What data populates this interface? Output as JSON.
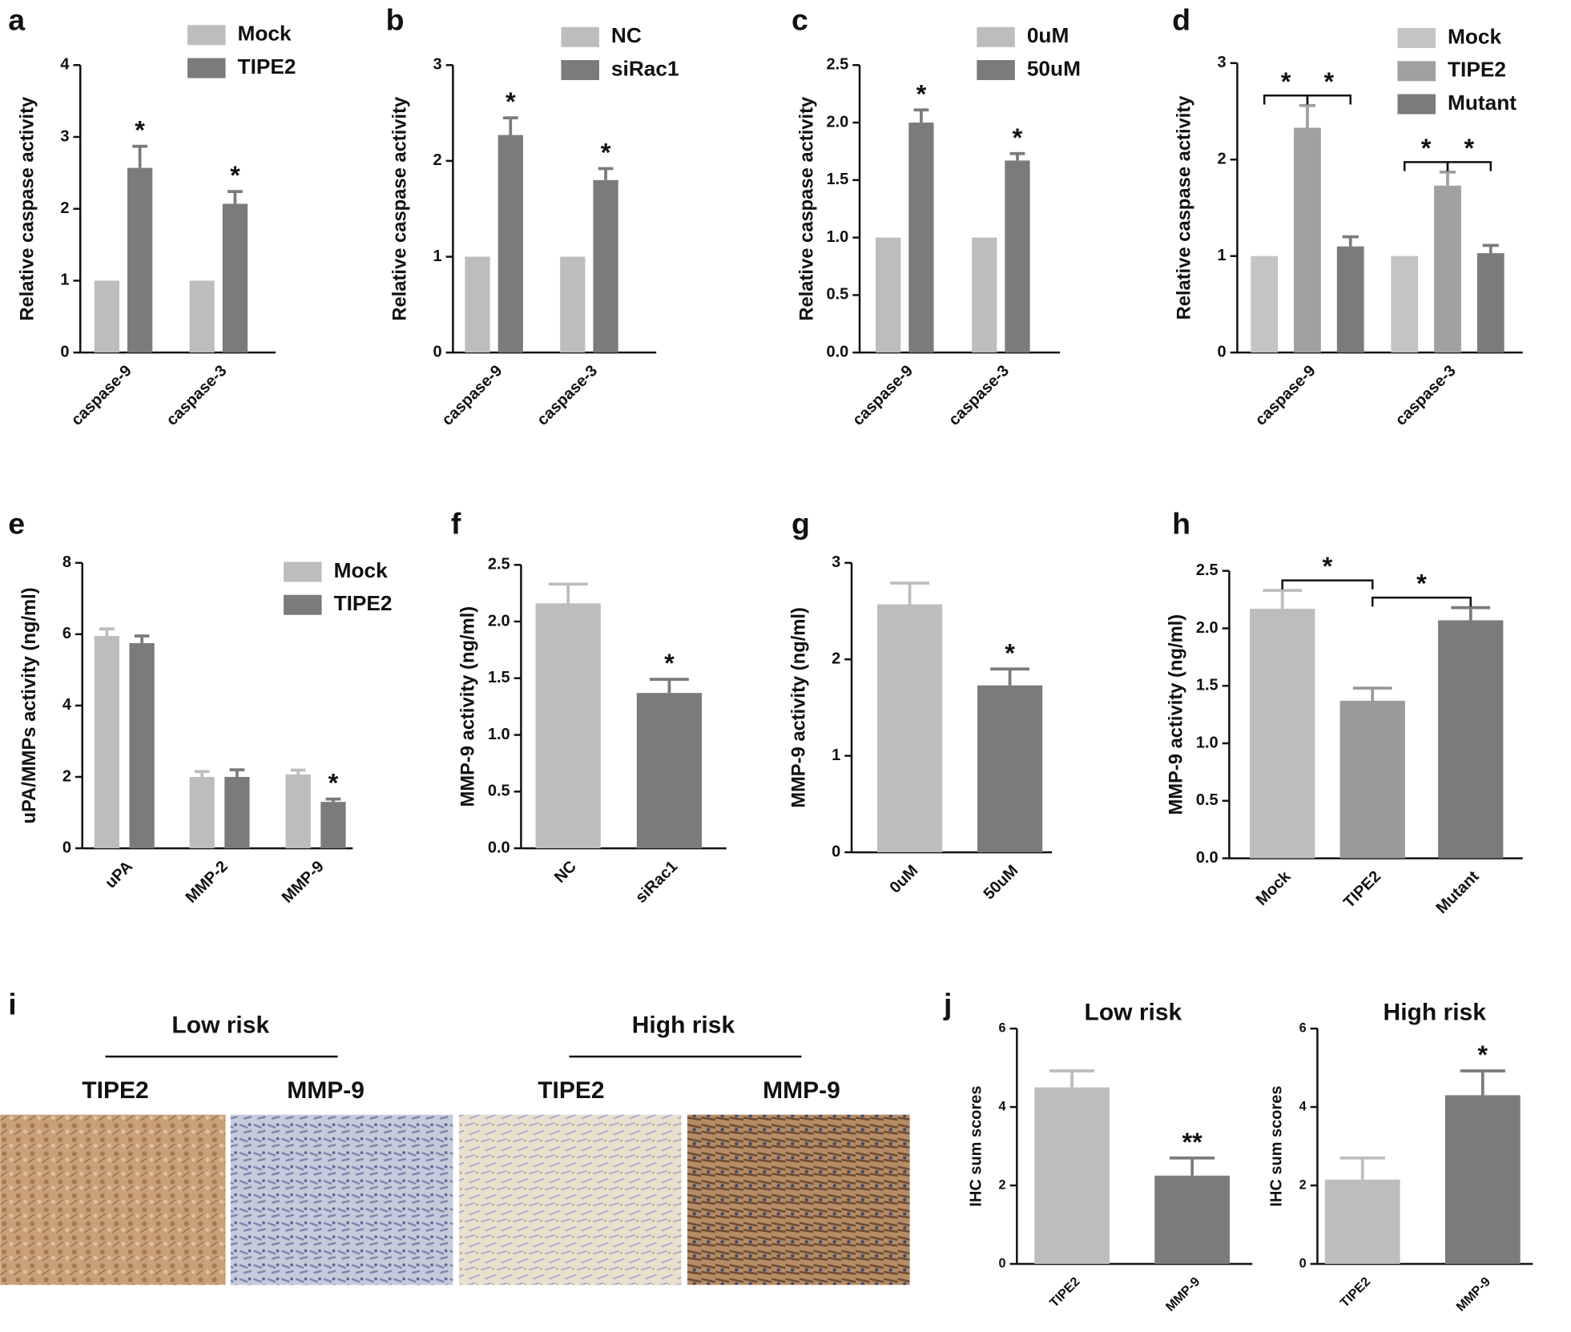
{
  "chart_data": [
    {
      "type": "bar",
      "panel": "a",
      "ylabel": "Relative caspase activity",
      "categories": [
        "caspase-9",
        "caspase-3"
      ],
      "ylim": [
        0,
        4
      ],
      "yticks": [
        0,
        1,
        2,
        3,
        4
      ],
      "series": [
        {
          "name": "Mock",
          "color": "#bdbdbd",
          "values": [
            1,
            1
          ],
          "errors": [
            0,
            0
          ]
        },
        {
          "name": "TIPE2",
          "color": "#7b7b7b",
          "values": [
            2.57,
            2.07
          ],
          "errors": [
            0.3,
            0.17
          ],
          "annotations": [
            "*",
            "*"
          ]
        }
      ]
    },
    {
      "type": "bar",
      "panel": "b",
      "ylabel": "Relative caspase activity",
      "categories": [
        "caspase-9",
        "caspase-3"
      ],
      "ylim": [
        0,
        3
      ],
      "yticks": [
        0,
        1,
        2,
        3
      ],
      "series": [
        {
          "name": "NC",
          "color": "#bdbdbd",
          "values": [
            1,
            1
          ],
          "errors": [
            0,
            0
          ]
        },
        {
          "name": "siRac1",
          "color": "#7b7b7b",
          "values": [
            2.27,
            1.8
          ],
          "errors": [
            0.18,
            0.12
          ],
          "annotations": [
            "*",
            "*"
          ]
        }
      ]
    },
    {
      "type": "bar",
      "panel": "c",
      "ylabel": "Relative caspase activity",
      "categories": [
        "caspase-9",
        "caspase-3"
      ],
      "ylim": [
        0,
        2.5
      ],
      "yticks": [
        {
          "value": 0,
          "label": "0.0"
        },
        0.5,
        {
          "value": 1,
          "label": "1.0"
        },
        1.5,
        {
          "value": 2,
          "label": "2.0"
        },
        2.5
      ],
      "series": [
        {
          "name": "0uM",
          "color": "#bdbdbd",
          "values": [
            1,
            1
          ],
          "errors": [
            0,
            0
          ]
        },
        {
          "name": "50uM",
          "color": "#7b7b7b",
          "values": [
            2.0,
            1.67
          ],
          "errors": [
            0.11,
            0.06
          ],
          "annotations": [
            "*",
            "*"
          ]
        }
      ]
    },
    {
      "type": "bar",
      "panel": "d",
      "ylabel": "Relative caspase activity",
      "categories": [
        "caspase-9",
        "caspase-3"
      ],
      "ylim": [
        0,
        3
      ],
      "yticks": [
        0,
        1,
        2,
        3
      ],
      "series": [
        {
          "name": "Mock",
          "color": "#c4c4c4",
          "values": [
            1,
            1
          ],
          "errors": [
            0,
            0
          ]
        },
        {
          "name": "TIPE2",
          "color": "#a0a0a0",
          "values": [
            2.33,
            1.73
          ],
          "errors": [
            0.23,
            0.14
          ]
        },
        {
          "name": "Mutant",
          "color": "#7b7b7b",
          "values": [
            1.1,
            1.03
          ],
          "errors": [
            0.1,
            0.08
          ]
        }
      ],
      "brackets": [
        {
          "category": 0,
          "between": [
            0,
            1
          ],
          "label": "*"
        },
        {
          "category": 0,
          "between": [
            1,
            2
          ],
          "label": "*"
        },
        {
          "category": 1,
          "between": [
            0,
            1
          ],
          "label": "*"
        },
        {
          "category": 1,
          "between": [
            1,
            2
          ],
          "label": "*"
        }
      ]
    },
    {
      "type": "bar",
      "panel": "e",
      "ylabel": "uPA/MMPs activity (ng/ml)",
      "categories": [
        "uPA",
        "MMP-2",
        "MMP-9"
      ],
      "ylim": [
        0,
        8
      ],
      "yticks": [
        0,
        2,
        4,
        6,
        8
      ],
      "series": [
        {
          "name": "Mock",
          "color": "#bdbdbd",
          "values": [
            5.95,
            2.0,
            2.07
          ],
          "errors": [
            0.2,
            0.15,
            0.12
          ]
        },
        {
          "name": "TIPE2",
          "color": "#7b7b7b",
          "values": [
            5.75,
            2.0,
            1.3
          ],
          "errors": [
            0.2,
            0.2,
            0.08
          ],
          "annotations": [
            null,
            null,
            "*"
          ]
        }
      ]
    },
    {
      "type": "bar",
      "panel": "f",
      "ylabel": "MMP-9 activity (ng/ml)",
      "categories": [
        "NC",
        "siRac1"
      ],
      "ylim": [
        0,
        2.5
      ],
      "yticks": [
        {
          "value": 0,
          "label": "0.0"
        },
        0.5,
        {
          "value": 1,
          "label": "1.0"
        },
        1.5,
        {
          "value": 2,
          "label": "2.0"
        },
        2.5
      ],
      "values": [
        2.16,
        1.37
      ],
      "errors": [
        0.17,
        0.12
      ],
      "colors": [
        "#bdbdbd",
        "#7b7b7b"
      ],
      "annotations": [
        null,
        "*"
      ]
    },
    {
      "type": "bar",
      "panel": "g",
      "ylabel": "MMP-9 activity (ng/ml)",
      "categories": [
        "0uM",
        "50uM"
      ],
      "ylim": [
        0,
        3
      ],
      "yticks": [
        0,
        1,
        2,
        3
      ],
      "values": [
        2.57,
        1.73
      ],
      "errors": [
        0.22,
        0.17
      ],
      "colors": [
        "#bdbdbd",
        "#7b7b7b"
      ],
      "annotations": [
        null,
        "*"
      ]
    },
    {
      "type": "bar",
      "panel": "h",
      "ylabel": "MMP-9 activity (ng/ml)",
      "categories": [
        "Mock",
        "TIPE2",
        "Mutant"
      ],
      "ylim": [
        0,
        2.5
      ],
      "yticks": [
        {
          "value": 0,
          "label": "0.0"
        },
        0.5,
        {
          "value": 1,
          "label": "1.0"
        },
        1.5,
        {
          "value": 2,
          "label": "2.0"
        },
        2.5
      ],
      "values": [
        2.17,
        1.37,
        2.07
      ],
      "errors": [
        0.16,
        0.11,
        0.11
      ],
      "colors": [
        "#bdbdbd",
        "#9a9a9a",
        "#7b7b7b"
      ],
      "brackets": [
        {
          "between": [
            0,
            1
          ],
          "label": "*"
        },
        {
          "between": [
            1,
            2
          ],
          "label": "*"
        }
      ]
    },
    {
      "type": "bar",
      "panel": "j",
      "title": "Low risk",
      "ylabel": "IHC sum scores",
      "categories": [
        "TIPE2",
        "MMP-9"
      ],
      "ylim": [
        0,
        6
      ],
      "yticks": [
        0,
        2,
        4,
        6
      ],
      "values": [
        4.5,
        2.25
      ],
      "errors": [
        0.42,
        0.45
      ],
      "colors": [
        "#bdbdbd",
        "#7b7b7b"
      ],
      "annotations": [
        null,
        "**"
      ]
    },
    {
      "type": "bar",
      "title": "High risk",
      "ylabel": "IHC sum scores",
      "categories": [
        "TIPE2",
        "MMP-9"
      ],
      "ylim": [
        0,
        6
      ],
      "yticks": [
        0,
        2,
        4,
        6
      ],
      "values": [
        2.15,
        4.3
      ],
      "errors": [
        0.55,
        0.62
      ],
      "colors": [
        "#bdbdbd",
        "#7b7b7b"
      ],
      "annotations": [
        null,
        "*"
      ]
    }
  ],
  "image_panel": {
    "panel": "i",
    "groups": [
      {
        "title": "Low risk",
        "images": [
          "TIPE2",
          "MMP-9"
        ]
      },
      {
        "title": "High risk",
        "images": [
          "TIPE2",
          "MMP-9"
        ]
      }
    ]
  }
}
